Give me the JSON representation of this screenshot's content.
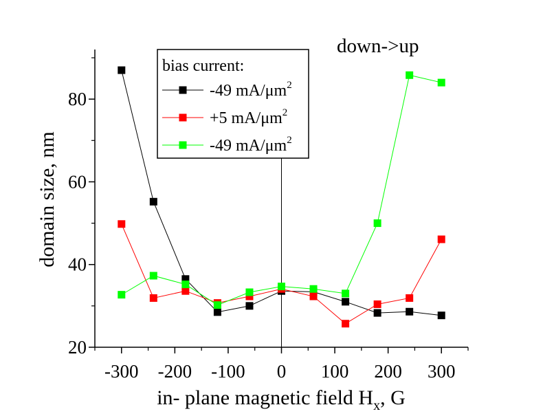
{
  "chart_data": {
    "type": "line",
    "title": "",
    "xlabel": "in- plane magnetic field H",
    "xlabel_sub": "x",
    "xlabel_suffix": ", G",
    "ylabel": "domain size, nm",
    "xlim": [
      -350,
      350
    ],
    "ylim": [
      20,
      92
    ],
    "xticks": [
      -300,
      -200,
      -100,
      0,
      100,
      200,
      300
    ],
    "yticks": [
      20,
      40,
      60,
      80
    ],
    "annotation": "down->up",
    "legend": {
      "title": "bias current:",
      "placement": "top-center"
    },
    "x": [
      -300,
      -240,
      -180,
      -120,
      -60,
      0,
      60,
      120,
      180,
      240,
      300
    ],
    "series": [
      {
        "name": "-49 mA/μm",
        "sup": "2",
        "color": "#000000",
        "values": [
          87.0,
          55.2,
          36.5,
          28.5,
          30.0,
          33.6,
          33.4,
          31.0,
          28.3,
          28.6,
          27.7
        ]
      },
      {
        "name": "+5 mA/μm",
        "sup": "2",
        "color": "#ff0000",
        "values": [
          49.8,
          31.9,
          33.6,
          30.7,
          32.3,
          34.1,
          32.3,
          25.7,
          30.4,
          31.9,
          46.1
        ]
      },
      {
        "name": "-49 mA/μm",
        "sup": "2",
        "color": "#00ff00",
        "values": [
          32.7,
          37.3,
          35.2,
          30.2,
          33.3,
          34.7,
          34.1,
          33.0,
          50.0,
          85.8,
          84.0
        ]
      }
    ]
  }
}
